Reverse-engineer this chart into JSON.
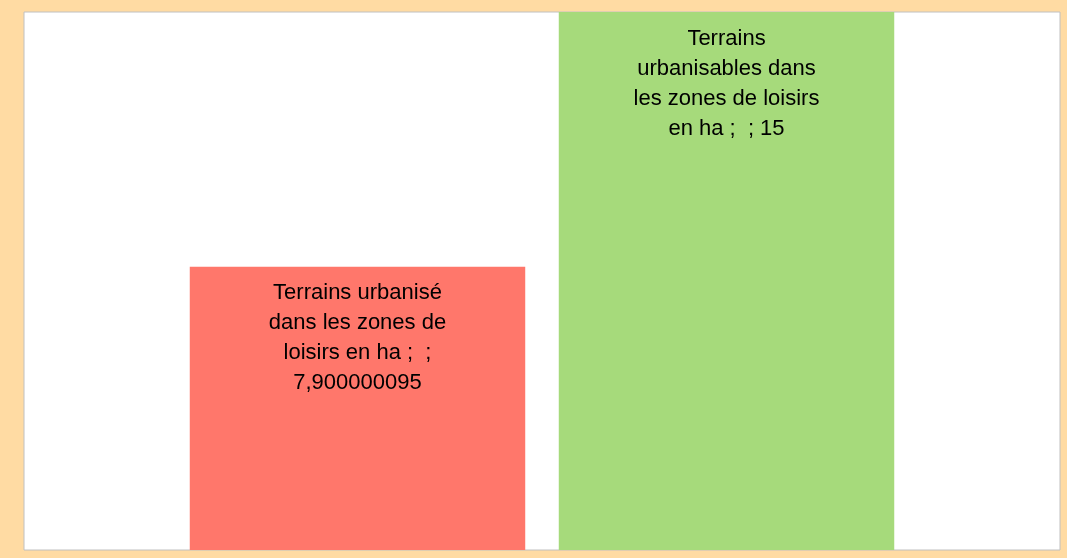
{
  "chart_data": {
    "type": "bar",
    "categories": [
      null
    ],
    "series": [
      {
        "name": "Terrains urbanisé dans les zones de loisirs en ha",
        "color": "#ff776b",
        "values": [
          7.900000095
        ],
        "value_labels": [
          "7,900000095"
        ]
      },
      {
        "name": "Terrains urbanisables dans les zones de loisirs en ha",
        "color": "#a6da7b",
        "values": [
          15
        ],
        "value_labels": [
          "15"
        ]
      }
    ],
    "annotations": [
      ";  ;",
      ";  ;"
    ]
  }
}
